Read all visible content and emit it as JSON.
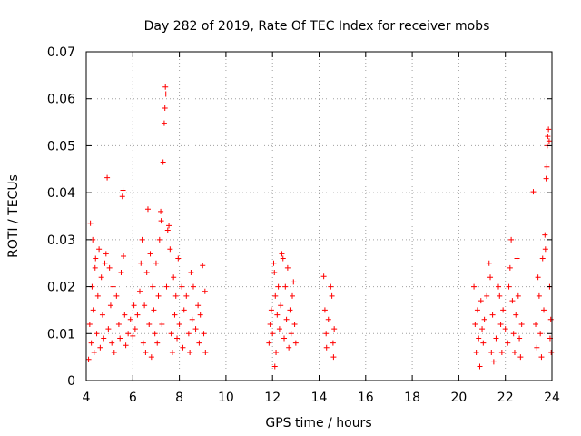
{
  "chart_data": {
    "type": "scatter",
    "title": "Day 282 of 2019, Rate Of TEC Index for receiver mobs",
    "xlabel": "GPS time / hours",
    "ylabel": "ROTI / TECUs",
    "xlim": [
      4,
      24
    ],
    "ylim": [
      0,
      0.07
    ],
    "grid": true,
    "x_ticks": [
      4,
      6,
      8,
      10,
      12,
      14,
      16,
      18,
      20,
      22,
      24
    ],
    "x_tick_labels": [
      "4",
      "6",
      "8",
      "10",
      "12",
      "14",
      "16",
      "18",
      "20",
      "22",
      "24"
    ],
    "y_ticks": [
      0,
      0.01,
      0.02,
      0.03,
      0.04,
      0.05,
      0.06,
      0.07
    ],
    "y_tick_labels": [
      "0",
      "0.01",
      "0.02",
      "0.03",
      "0.04",
      "0.05",
      "0.06",
      "0.07"
    ],
    "marker": "+",
    "marker_color": "#ff0000",
    "series": [
      {
        "name": "ROTI",
        "points": [
          [
            4.1,
            0.0045
          ],
          [
            4.15,
            0.012
          ],
          [
            4.18,
            0.0335
          ],
          [
            4.22,
            0.008
          ],
          [
            4.25,
            0.02
          ],
          [
            4.28,
            0.03
          ],
          [
            4.3,
            0.015
          ],
          [
            4.34,
            0.006
          ],
          [
            4.38,
            0.024
          ],
          [
            4.4,
            0.026
          ],
          [
            4.45,
            0.01
          ],
          [
            4.5,
            0.018
          ],
          [
            4.55,
            0.028
          ],
          [
            4.6,
            0.007
          ],
          [
            4.65,
            0.022
          ],
          [
            4.7,
            0.014
          ],
          [
            4.75,
            0.009
          ],
          [
            4.8,
            0.025
          ],
          [
            4.85,
            0.027
          ],
          [
            4.9,
            0.0432
          ],
          [
            4.95,
            0.011
          ],
          [
            5.0,
            0.024
          ],
          [
            5.05,
            0.016
          ],
          [
            5.1,
            0.008
          ],
          [
            5.15,
            0.02
          ],
          [
            5.2,
            0.006
          ],
          [
            5.3,
            0.018
          ],
          [
            5.4,
            0.012
          ],
          [
            5.45,
            0.009
          ],
          [
            5.5,
            0.023
          ],
          [
            5.55,
            0.0392
          ],
          [
            5.58,
            0.0405
          ],
          [
            5.6,
            0.0265
          ],
          [
            5.65,
            0.014
          ],
          [
            5.7,
            0.0075
          ],
          [
            5.8,
            0.01
          ],
          [
            5.9,
            0.013
          ],
          [
            6.0,
            0.0095
          ],
          [
            6.05,
            0.016
          ],
          [
            6.1,
            0.011
          ],
          [
            6.2,
            0.014
          ],
          [
            6.3,
            0.019
          ],
          [
            6.35,
            0.025
          ],
          [
            6.4,
            0.03
          ],
          [
            6.45,
            0.008
          ],
          [
            6.5,
            0.016
          ],
          [
            6.55,
            0.006
          ],
          [
            6.6,
            0.023
          ],
          [
            6.65,
            0.0365
          ],
          [
            6.7,
            0.012
          ],
          [
            6.75,
            0.027
          ],
          [
            6.8,
            0.005
          ],
          [
            6.85,
            0.02
          ],
          [
            6.9,
            0.015
          ],
          [
            6.95,
            0.01
          ],
          [
            7.0,
            0.025
          ],
          [
            7.05,
            0.008
          ],
          [
            7.1,
            0.018
          ],
          [
            7.15,
            0.03
          ],
          [
            7.2,
            0.036
          ],
          [
            7.22,
            0.034
          ],
          [
            7.25,
            0.012
          ],
          [
            7.3,
            0.0465
          ],
          [
            7.35,
            0.0548
          ],
          [
            7.38,
            0.058
          ],
          [
            7.4,
            0.0625
          ],
          [
            7.42,
            0.061
          ],
          [
            7.45,
            0.02
          ],
          [
            7.5,
            0.032
          ],
          [
            7.55,
            0.033
          ],
          [
            7.6,
            0.028
          ],
          [
            7.65,
            0.01
          ],
          [
            7.7,
            0.006
          ],
          [
            7.75,
            0.022
          ],
          [
            7.8,
            0.014
          ],
          [
            7.85,
            0.018
          ],
          [
            7.9,
            0.009
          ],
          [
            7.95,
            0.026
          ],
          [
            8.0,
            0.012
          ],
          [
            8.1,
            0.02
          ],
          [
            8.15,
            0.007
          ],
          [
            8.2,
            0.015
          ],
          [
            8.3,
            0.018
          ],
          [
            8.4,
            0.01
          ],
          [
            8.45,
            0.006
          ],
          [
            8.5,
            0.023
          ],
          [
            8.55,
            0.013
          ],
          [
            8.6,
            0.02
          ],
          [
            8.7,
            0.011
          ],
          [
            8.8,
            0.016
          ],
          [
            8.85,
            0.008
          ],
          [
            8.9,
            0.014
          ],
          [
            9.0,
            0.0245
          ],
          [
            9.05,
            0.01
          ],
          [
            9.1,
            0.019
          ],
          [
            9.12,
            0.006
          ],
          [
            11.85,
            0.008
          ],
          [
            11.9,
            0.012
          ],
          [
            11.95,
            0.015
          ],
          [
            12.0,
            0.01
          ],
          [
            12.05,
            0.025
          ],
          [
            12.08,
            0.023
          ],
          [
            12.1,
            0.003
          ],
          [
            12.12,
            0.018
          ],
          [
            12.15,
            0.006
          ],
          [
            12.2,
            0.014
          ],
          [
            12.25,
            0.02
          ],
          [
            12.3,
            0.011
          ],
          [
            12.35,
            0.016
          ],
          [
            12.4,
            0.027
          ],
          [
            12.45,
            0.026
          ],
          [
            12.5,
            0.009
          ],
          [
            12.55,
            0.02
          ],
          [
            12.6,
            0.013
          ],
          [
            12.65,
            0.024
          ],
          [
            12.7,
            0.007
          ],
          [
            12.75,
            0.015
          ],
          [
            12.8,
            0.01
          ],
          [
            12.85,
            0.018
          ],
          [
            12.9,
            0.021
          ],
          [
            12.95,
            0.012
          ],
          [
            13.0,
            0.008
          ],
          [
            14.2,
            0.0222
          ],
          [
            14.25,
            0.015
          ],
          [
            14.3,
            0.01
          ],
          [
            14.32,
            0.007
          ],
          [
            14.4,
            0.013
          ],
          [
            14.5,
            0.02
          ],
          [
            14.55,
            0.018
          ],
          [
            14.6,
            0.008
          ],
          [
            14.62,
            0.005
          ],
          [
            14.65,
            0.011
          ],
          [
            20.65,
            0.02
          ],
          [
            20.7,
            0.012
          ],
          [
            20.75,
            0.006
          ],
          [
            20.8,
            0.015
          ],
          [
            20.85,
            0.009
          ],
          [
            20.9,
            0.003
          ],
          [
            20.95,
            0.017
          ],
          [
            21.0,
            0.011
          ],
          [
            21.05,
            0.008
          ],
          [
            21.1,
            0.013
          ],
          [
            21.2,
            0.018
          ],
          [
            21.3,
            0.025
          ],
          [
            21.35,
            0.022
          ],
          [
            21.4,
            0.006
          ],
          [
            21.45,
            0.014
          ],
          [
            21.5,
            0.004
          ],
          [
            21.6,
            0.009
          ],
          [
            21.7,
            0.02
          ],
          [
            21.75,
            0.018
          ],
          [
            21.8,
            0.012
          ],
          [
            21.85,
            0.006
          ],
          [
            21.9,
            0.015
          ],
          [
            22.0,
            0.011
          ],
          [
            22.1,
            0.008
          ],
          [
            22.15,
            0.02
          ],
          [
            22.2,
            0.024
          ],
          [
            22.25,
            0.03
          ],
          [
            22.3,
            0.017
          ],
          [
            22.35,
            0.01
          ],
          [
            22.4,
            0.006
          ],
          [
            22.45,
            0.014
          ],
          [
            22.5,
            0.026
          ],
          [
            22.55,
            0.018
          ],
          [
            22.6,
            0.009
          ],
          [
            22.65,
            0.005
          ],
          [
            22.7,
            0.012
          ],
          [
            23.2,
            0.0402
          ],
          [
            23.3,
            0.012
          ],
          [
            23.35,
            0.007
          ],
          [
            23.4,
            0.022
          ],
          [
            23.45,
            0.018
          ],
          [
            23.5,
            0.01
          ],
          [
            23.55,
            0.005
          ],
          [
            23.6,
            0.026
          ],
          [
            23.65,
            0.015
          ],
          [
            23.7,
            0.031
          ],
          [
            23.72,
            0.028
          ],
          [
            23.75,
            0.043
          ],
          [
            23.78,
            0.0455
          ],
          [
            23.8,
            0.05
          ],
          [
            23.82,
            0.052
          ],
          [
            23.85,
            0.0535
          ],
          [
            23.88,
            0.051
          ],
          [
            23.9,
            0.02
          ],
          [
            23.92,
            0.009
          ],
          [
            23.95,
            0.013
          ],
          [
            23.97,
            0.006
          ]
        ]
      }
    ]
  }
}
